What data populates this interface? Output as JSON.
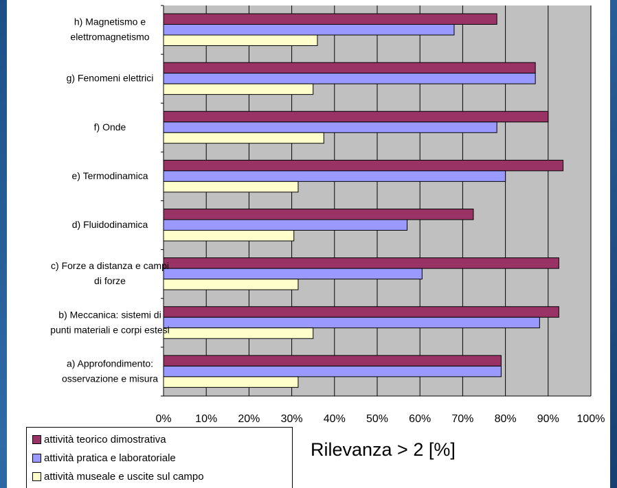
{
  "chart_data": {
    "type": "bar",
    "orientation": "horizontal",
    "categories": [
      [
        "h) Magnetismo e",
        "elettromagnetismo"
      ],
      [
        "g) Fenomeni elettrici"
      ],
      [
        "f) Onde"
      ],
      [
        "e) Termodinamica"
      ],
      [
        "d) Fluidodinamica"
      ],
      [
        "c) Forze  a distanza e campi",
        "di forze"
      ],
      [
        "b) Meccanica: sistemi di",
        "punti materiali e corpi estesi"
      ],
      [
        "a) Approfondimento:",
        "osservazione e misura"
      ]
    ],
    "series": [
      {
        "name": "attività teorico dimostrativa",
        "color": "#993366",
        "values": [
          78,
          87,
          90,
          93.5,
          72.5,
          92.5,
          92.5,
          79
        ]
      },
      {
        "name": "attività pratica e laboratoriale",
        "color": "#9999FF",
        "values": [
          68,
          87,
          78,
          80,
          57,
          60.5,
          88,
          79
        ]
      },
      {
        "name": "attività museale e uscite sul campo",
        "color": "#FFFFCC",
        "values": [
          36,
          35,
          37.5,
          31.5,
          30.5,
          31.5,
          35,
          31.5
        ]
      }
    ],
    "xlim": [
      0,
      100
    ],
    "x_ticks": [
      "0%",
      "10%",
      "20%",
      "30%",
      "40%",
      "50%",
      "60%",
      "70%",
      "80%",
      "90%",
      "100%"
    ],
    "xlabel": "Rilevanza > 2 [%]",
    "grid": true,
    "legend_position": "bottom-left",
    "plot_background": "#C0C0C0"
  }
}
